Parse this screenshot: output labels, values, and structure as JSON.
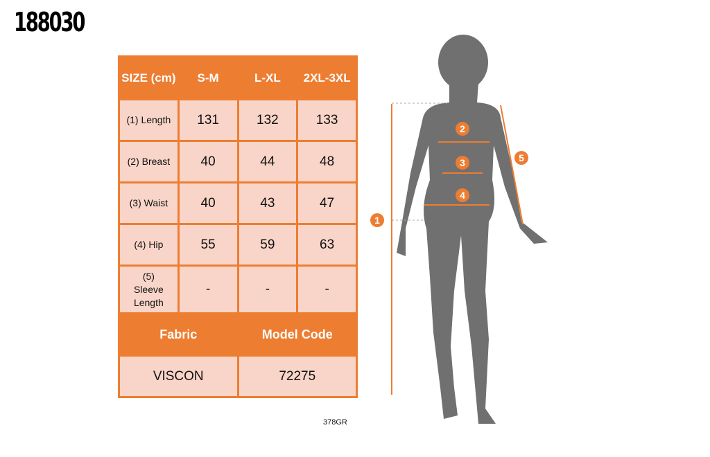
{
  "product_code": "188030",
  "table": {
    "headers": [
      "SIZE (cm)",
      "S-M",
      "L-XL",
      "2XL-3XL"
    ],
    "rows": [
      {
        "label": "(1) Length",
        "values": [
          "131",
          "132",
          "133"
        ]
      },
      {
        "label": "(2) Breast",
        "values": [
          "40",
          "44",
          "48"
        ]
      },
      {
        "label": "(3) Waist",
        "values": [
          "40",
          "43",
          "47"
        ]
      },
      {
        "label": "(4) Hip",
        "values": [
          "55",
          "59",
          "63"
        ]
      },
      {
        "label": "(5) Sleeve Length",
        "values": [
          "-",
          "-",
          "-"
        ]
      }
    ],
    "footer_headers": [
      "Fabric",
      "Model Code"
    ],
    "footer_values": [
      "VISCON",
      "72275"
    ]
  },
  "reference": "378GR",
  "figure": {
    "markers": [
      "1",
      "2",
      "3",
      "4",
      "5"
    ],
    "accent": "#ed7d31",
    "silhouette": "#707070"
  }
}
